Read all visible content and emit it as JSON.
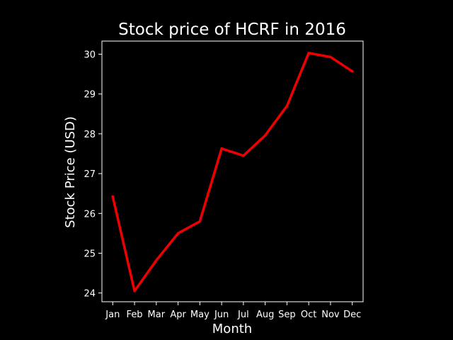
{
  "chart_data": {
    "type": "line",
    "title": "Stock price of HCRF in 2016",
    "xlabel": "Month",
    "ylabel": "Stock Price (USD)",
    "categories": [
      "Jan",
      "Feb",
      "Mar",
      "Apr",
      "May",
      "Jun",
      "Jul",
      "Aug",
      "Sep",
      "Oct",
      "Nov",
      "Dec"
    ],
    "series": [
      {
        "values": [
          26.42,
          24.05,
          24.82,
          25.5,
          25.8,
          27.63,
          27.45,
          27.96,
          28.7,
          30.03,
          29.93,
          29.57
        ],
        "color": "#ee0000"
      }
    ],
    "ylim": [
      23.78,
      30.33
    ],
    "yticks": [
      24,
      25,
      26,
      27,
      28,
      29,
      30
    ],
    "grid": false,
    "legend": "none",
    "background": "#000000",
    "foreground": "#ffffff"
  }
}
